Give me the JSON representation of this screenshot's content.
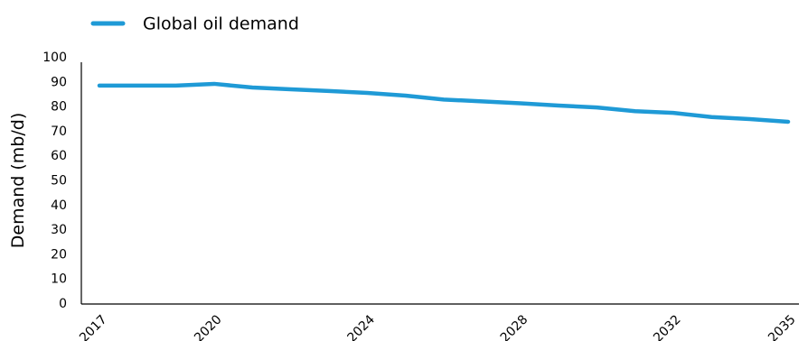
{
  "chart_data": {
    "type": "line",
    "title": "",
    "xlabel": "",
    "ylabel": "Demand (mb/d)",
    "xlim": [
      2017,
      2035
    ],
    "ylim": [
      0,
      100
    ],
    "yticks": [
      0,
      10,
      20,
      30,
      40,
      50,
      60,
      70,
      80,
      90,
      100
    ],
    "xticks": [
      "2017",
      "2020",
      "2024",
      "2028",
      "2032",
      "2035"
    ],
    "x": [
      2017,
      2018,
      2019,
      2020,
      2021,
      2022,
      2023,
      2024,
      2025,
      2026,
      2027,
      2028,
      2029,
      2030,
      2031,
      2032,
      2033,
      2034,
      2035
    ],
    "series": [
      {
        "name": "Global oil demand",
        "color": "#1f9ad6",
        "values": [
          88.7,
          88.7,
          88.7,
          89.4,
          87.9,
          87.2,
          86.5,
          85.7,
          84.6,
          83.0,
          82.3,
          81.5,
          80.6,
          79.8,
          78.3,
          77.6,
          75.9,
          75.1,
          74.0
        ]
      }
    ],
    "grid": false,
    "legend_position": "top-left"
  }
}
